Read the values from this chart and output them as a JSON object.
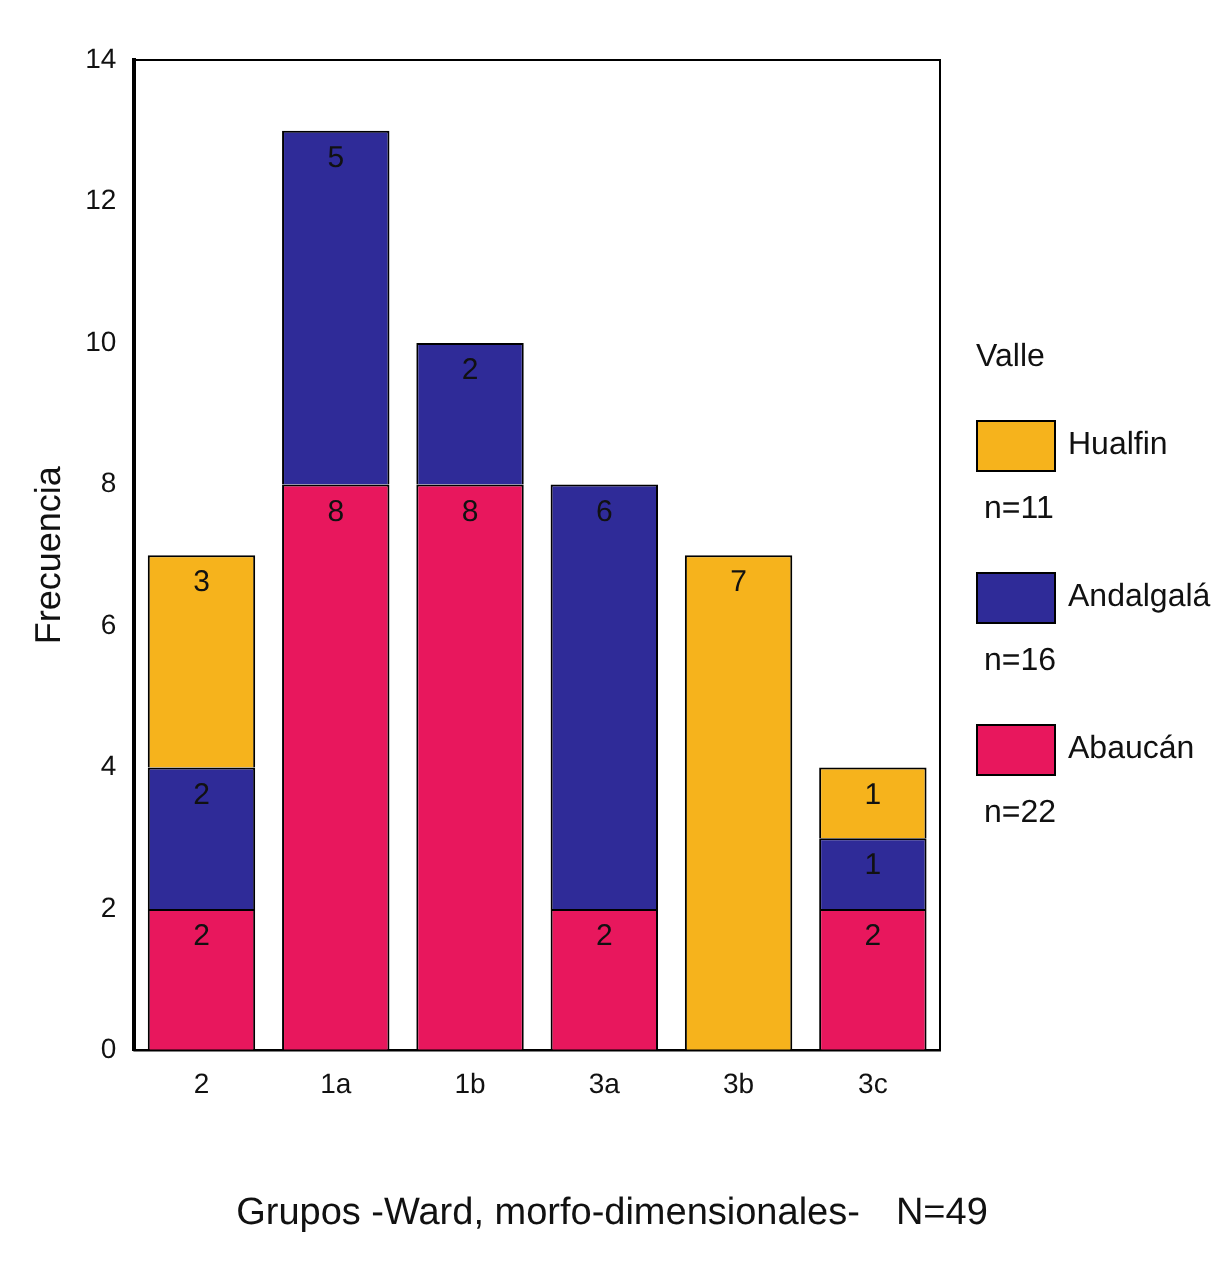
{
  "chart_data": {
    "type": "bar",
    "stacked": true,
    "xlabel": "Grupos -Ward, morfo-dimensionales-",
    "ylabel": "Frecuencia",
    "legend_title": "Valle",
    "legend": "right",
    "data_labels": true,
    "grid": false,
    "categories": [
      "2",
      "1a",
      "1b",
      "3a",
      "3b",
      "3c"
    ],
    "series": [
      {
        "name": "Abaucán",
        "color": "#e8175d",
        "values": [
          2,
          8,
          8,
          2,
          null,
          2
        ]
      },
      {
        "name": "Andalgalá",
        "color": "#2f2b98",
        "values": [
          2,
          5,
          2,
          6,
          null,
          1
        ]
      },
      {
        "name": "Hualfin",
        "color": "#f6b31c",
        "values": [
          3,
          null,
          null,
          null,
          7,
          1
        ]
      }
    ],
    "ylim": [
      0,
      14
    ],
    "yticks": [
      0,
      2,
      4,
      6,
      8,
      10,
      12,
      14
    ],
    "annotations": [
      "n=22",
      "n=16",
      "n=11",
      "N=49"
    ]
  }
}
